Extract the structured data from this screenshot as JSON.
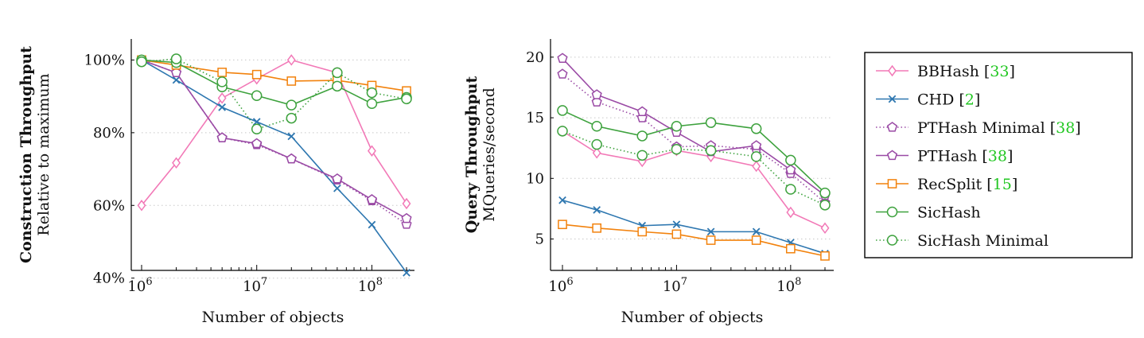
{
  "chart_data": [
    {
      "type": "line",
      "ylabel": "Construction Throughput",
      "ylabel_sub": "Relative to maximum",
      "xlabel": "Number of objects",
      "x_scale": "log",
      "xlim": [
        1000000,
        200000000
      ],
      "ylim": [
        36,
        106
      ],
      "x": [
        1000000,
        2000000,
        5000000,
        10000000,
        20000000,
        50000000,
        100000000,
        200000000
      ],
      "x_ticks": [
        1000000,
        10000000,
        100000000
      ],
      "x_tick_labels": [
        [
          "10",
          "6"
        ],
        [
          "10",
          "7"
        ],
        [
          "10",
          "8"
        ]
      ],
      "y_ticks": [
        40,
        60,
        80,
        100
      ],
      "y_tick_labels": [
        "40%",
        "60%",
        "80%",
        "100%"
      ],
      "grid": "horizontal dotted",
      "series": [
        {
          "name": "BBHash",
          "values": [
            60,
            71.7,
            89.5,
            94.8,
            100,
            96.5,
            75,
            60.5
          ]
        },
        {
          "name": "CHD",
          "values": [
            100,
            94.5,
            87,
            83,
            79,
            64.7,
            54.7,
            41.5
          ]
        },
        {
          "name": "PTHash Minimal",
          "values": [
            100,
            96.5,
            78.6,
            76.7,
            72.8,
            67,
            61.3,
            54.8
          ]
        },
        {
          "name": "PTHash",
          "values": [
            100,
            96.5,
            78.6,
            77,
            72.8,
            67.3,
            61.6,
            56.4
          ]
        },
        {
          "name": "RecSplit",
          "values": [
            100,
            98.6,
            96.6,
            96,
            94.2,
            94.4,
            93,
            91.5
          ]
        },
        {
          "name": "SicHash",
          "values": [
            100,
            99.3,
            92.6,
            90.2,
            87.6,
            92.8,
            88,
            89.7
          ]
        },
        {
          "name": "SicHash Minimal",
          "values": [
            99.5,
            100.3,
            94,
            81,
            84,
            96.5,
            91,
            89.3
          ]
        }
      ]
    },
    {
      "type": "line",
      "ylabel": "Query Throughput",
      "ylabel_sub": "MQueries/second",
      "xlabel": "Number of objects",
      "x_scale": "log",
      "xlim": [
        1000000,
        200000000
      ],
      "ylim": [
        3,
        21.5
      ],
      "x": [
        1000000,
        2000000,
        5000000,
        10000000,
        20000000,
        50000000,
        100000000,
        200000000
      ],
      "x_ticks": [
        1000000,
        10000000,
        100000000
      ],
      "x_tick_labels": [
        [
          "10",
          "6"
        ],
        [
          "10",
          "7"
        ],
        [
          "10",
          "8"
        ]
      ],
      "y_ticks": [
        5,
        10,
        15,
        20
      ],
      "y_tick_labels": [
        "5",
        "10",
        "15",
        "20"
      ],
      "grid": "horizontal dotted",
      "series": [
        {
          "name": "BBHash",
          "values": [
            13.9,
            12.1,
            11.4,
            12.3,
            11.8,
            11.0,
            7.2,
            5.9
          ]
        },
        {
          "name": "CHD",
          "values": [
            8.2,
            7.4,
            6.1,
            6.2,
            5.6,
            5.6,
            4.7,
            3.8
          ]
        },
        {
          "name": "PTHash Minimal",
          "values": [
            18.6,
            16.3,
            15.0,
            12.6,
            12.7,
            12.4,
            10.4,
            8.0
          ]
        },
        {
          "name": "PTHash",
          "values": [
            19.9,
            16.9,
            15.5,
            13.8,
            12.2,
            12.7,
            10.7,
            8.6
          ]
        },
        {
          "name": "RecSplit",
          "values": [
            6.2,
            5.9,
            5.6,
            5.4,
            4.9,
            4.9,
            4.2,
            3.6
          ]
        },
        {
          "name": "SicHash",
          "values": [
            15.6,
            14.3,
            13.5,
            14.3,
            14.6,
            14.1,
            11.5,
            8.8
          ]
        },
        {
          "name": "SicHash Minimal",
          "values": [
            13.9,
            12.8,
            11.9,
            12.4,
            12.3,
            11.8,
            9.1,
            7.8
          ]
        }
      ]
    }
  ],
  "styles": {
    "BBHash": {
      "color": "#f279b7",
      "marker": "diamond",
      "dash": "solid"
    },
    "CHD": {
      "color": "#2e77b0",
      "marker": "x",
      "dash": "solid"
    },
    "PTHash Minimal": {
      "color": "#9a4aa5",
      "marker": "pentagon",
      "dash": "dotted"
    },
    "PTHash": {
      "color": "#9a4aa5",
      "marker": "pentagon",
      "dash": "solid"
    },
    "RecSplit": {
      "color": "#f2820d",
      "marker": "square",
      "dash": "solid"
    },
    "SicHash": {
      "color": "#3ea23e",
      "marker": "circle",
      "dash": "solid"
    },
    "SicHash Minimal": {
      "color": "#3ea23e",
      "marker": "circle",
      "dash": "dotted"
    }
  },
  "legend": {
    "placement": "right",
    "items": [
      {
        "name": "BBHash",
        "ref": "33"
      },
      {
        "name": "CHD",
        "ref": "2"
      },
      {
        "name": "PTHash Minimal",
        "ref": "38"
      },
      {
        "name": "PTHash",
        "ref": "38"
      },
      {
        "name": "RecSplit",
        "ref": "15"
      },
      {
        "name": "SicHash",
        "ref": ""
      },
      {
        "name": "SicHash Minimal",
        "ref": ""
      }
    ]
  }
}
